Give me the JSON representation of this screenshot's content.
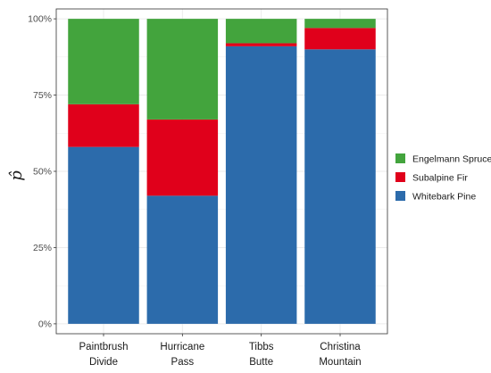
{
  "chart_data": {
    "type": "bar",
    "stacked": true,
    "title": "",
    "xlabel": "",
    "ylabel": "p̂",
    "ylim": [
      0,
      1
    ],
    "y_ticks": [
      0,
      0.25,
      0.5,
      0.75,
      1.0
    ],
    "y_tick_labels": [
      "0%",
      "25%",
      "50%",
      "75%",
      "100%"
    ],
    "categories": [
      [
        "Paintbrush",
        "Divide"
      ],
      [
        "Hurricane",
        "Pass"
      ],
      [
        "Tibbs",
        "Butte"
      ],
      [
        "Christina",
        "Mountain"
      ]
    ],
    "series": [
      {
        "name": "Whitebark Pine",
        "color": "#2c6bab",
        "values": [
          0.58,
          0.42,
          0.91,
          0.9
        ]
      },
      {
        "name": "Subalpine Fir",
        "color": "#e0001b",
        "values": [
          0.14,
          0.25,
          0.01,
          0.07
        ]
      },
      {
        "name": "Engelmann Spruce",
        "color": "#43a43d",
        "values": [
          0.28,
          0.33,
          0.08,
          0.03
        ]
      }
    ],
    "legend": {
      "position": "right",
      "order": [
        "Engelmann Spruce",
        "Subalpine Fir",
        "Whitebark Pine"
      ]
    },
    "grid": true,
    "panel_border": true
  }
}
